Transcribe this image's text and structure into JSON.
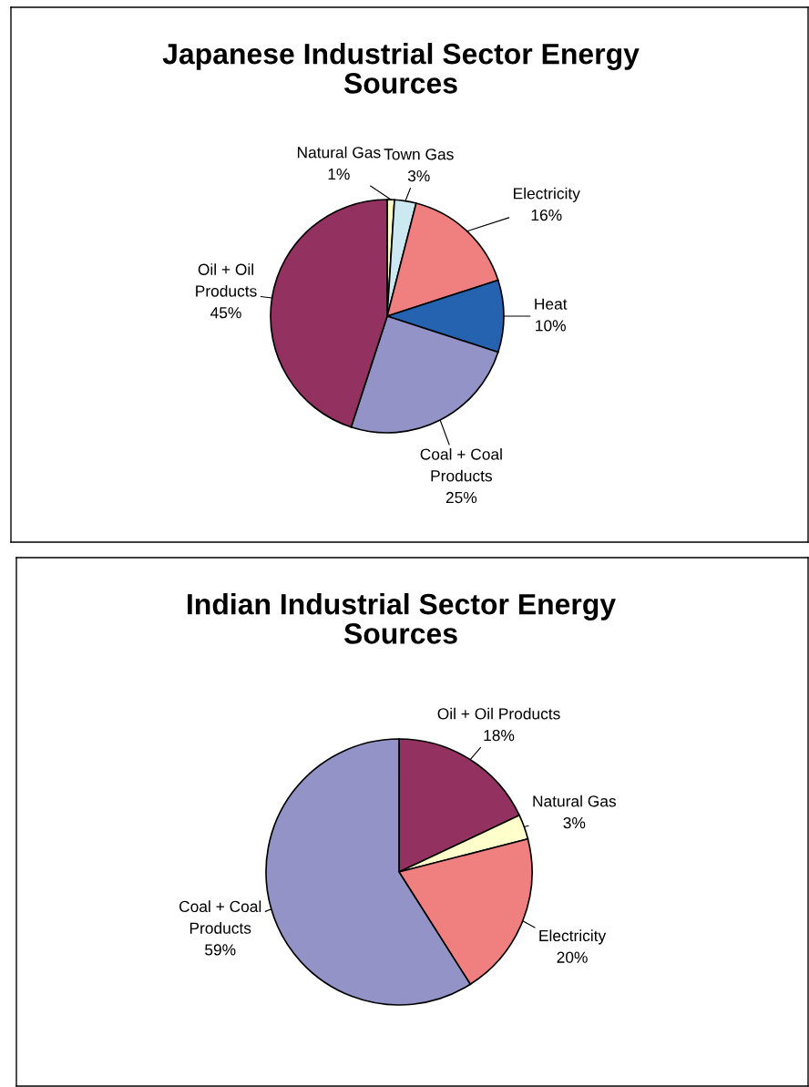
{
  "chart_data": [
    {
      "type": "pie",
      "title": "Japanese Industrial Sector Energy\nSources",
      "categories": [
        "Natural Gas",
        "Town Gas",
        "Electricity",
        "Heat",
        "Coal + Coal\nProducts",
        "Oil + Oil\nProducts"
      ],
      "values": [
        1,
        3,
        16,
        10,
        25,
        45
      ],
      "colors": [
        "#ffffcc",
        "#cce8f0",
        "#f08080",
        "#2563b0",
        "#9393c8",
        "#933260"
      ],
      "value_labels": [
        "1%",
        "3%",
        "16%",
        "10%",
        "25%",
        "45%"
      ]
    },
    {
      "type": "pie",
      "title": "Indian Industrial Sector Energy\nSources",
      "categories": [
        "Oil + Oil Products",
        "Natural Gas",
        "Electricity",
        "Coal + Coal\nProducts"
      ],
      "values": [
        18,
        3,
        20,
        59
      ],
      "colors": [
        "#933260",
        "#ffffcc",
        "#f08080",
        "#9393c8"
      ],
      "value_labels": [
        "18%",
        "3%",
        "20%",
        "59%"
      ]
    }
  ]
}
